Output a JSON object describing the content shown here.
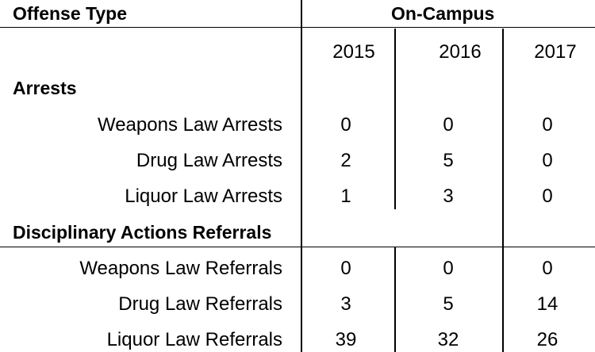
{
  "header": {
    "offense_type": "Offense Type",
    "on_campus": "On-Campus",
    "years": [
      "2015",
      "2016",
      "2017"
    ]
  },
  "sections": [
    {
      "title": "Arrests",
      "rows": [
        {
          "label": "Weapons Law Arrests",
          "values": [
            "0",
            "0",
            "0"
          ]
        },
        {
          "label": "Drug Law Arrests",
          "values": [
            "2",
            "5",
            "0"
          ]
        },
        {
          "label": "Liquor Law Arrests",
          "values": [
            "1",
            "3",
            "0"
          ]
        }
      ]
    },
    {
      "title": "Disciplinary Actions Referrals",
      "rows": [
        {
          "label": "Weapons Law Referrals",
          "values": [
            "0",
            "0",
            "0"
          ]
        },
        {
          "label": "Drug Law Referrals",
          "values": [
            "3",
            "5",
            "14"
          ]
        },
        {
          "label": "Liquor Law Referrals",
          "values": [
            "39",
            "32",
            "26"
          ]
        }
      ]
    }
  ]
}
